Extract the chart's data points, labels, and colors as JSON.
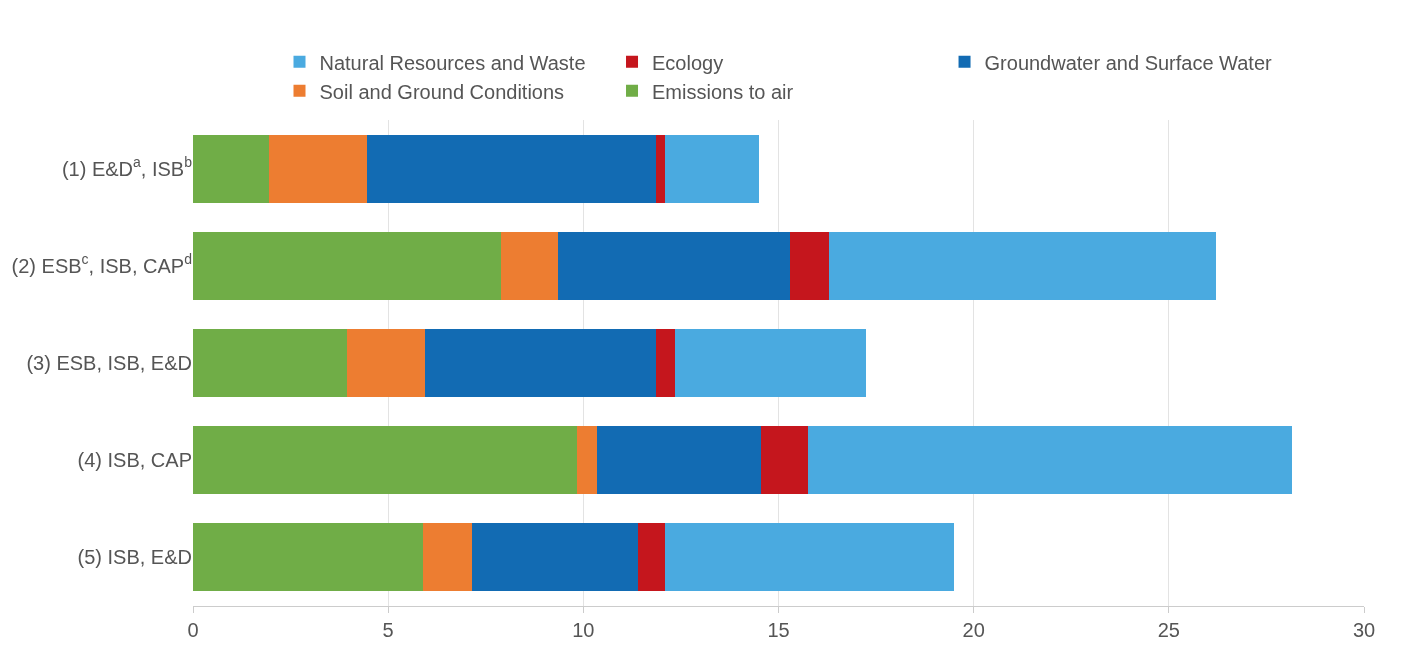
{
  "chart_data": {
    "type": "bar",
    "orientation": "horizontal",
    "stacked": true,
    "categories": [
      "(1) E&D$^{a}$, ISB$^{b}$",
      "(2) ESB$^{c}$, ISB, CAP$^{d}$",
      "(3) ESB, ISB, E&D",
      "(4) ISB, CAP",
      "(5) ISB, E&D"
    ],
    "series": [
      {
        "name": "Emissions to air",
        "color": "#70ad47",
        "values": [
          1.95,
          7.9,
          3.95,
          9.85,
          5.9
        ]
      },
      {
        "name": "Soil and Ground Conditions",
        "color": "#ed7d31",
        "values": [
          2.5,
          1.45,
          2.0,
          0.5,
          1.25
        ]
      },
      {
        "name": "Groundwater and Surface Water",
        "color": "#126bb3",
        "values": [
          7.4,
          5.95,
          5.9,
          4.2,
          4.25
        ]
      },
      {
        "name": "Ecology",
        "color": "#c5161d",
        "values": [
          0.25,
          1.0,
          0.5,
          1.2,
          0.7
        ]
      },
      {
        "name": "Natural Resources and Waste",
        "color": "#4aaae0",
        "values": [
          2.4,
          9.9,
          4.9,
          12.4,
          7.4
        ]
      }
    ],
    "xlim": [
      0,
      30
    ],
    "xticks": [
      0,
      5,
      10,
      15,
      20,
      25,
      30
    ],
    "grid": "x",
    "legend": "top"
  }
}
